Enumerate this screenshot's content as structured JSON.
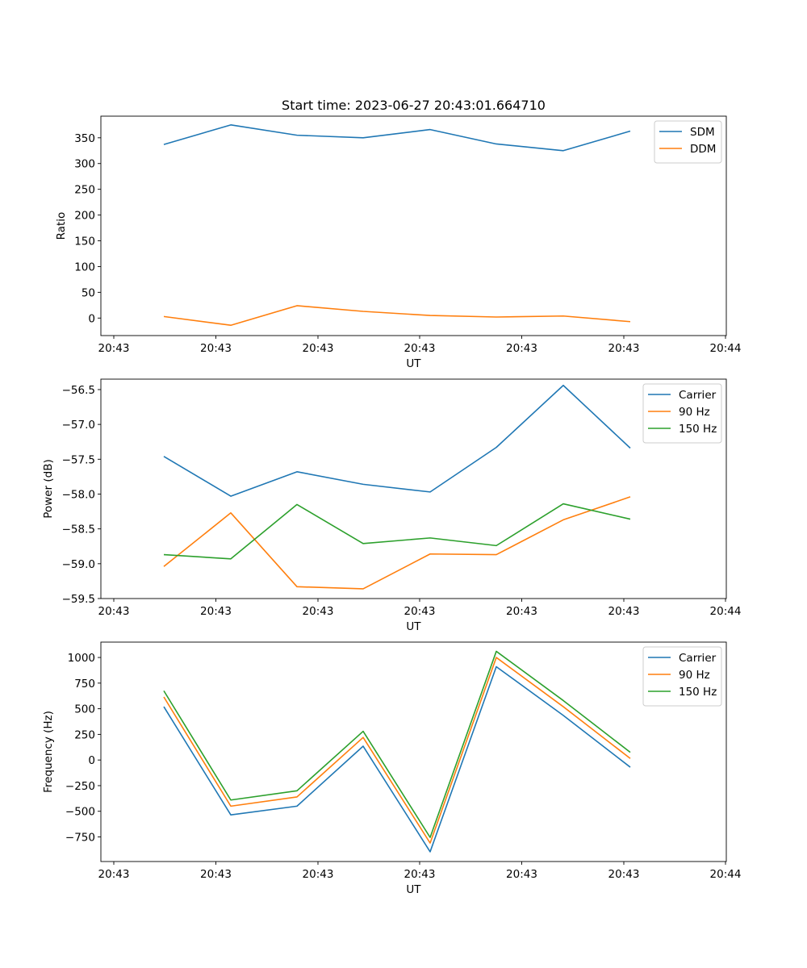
{
  "title": "Start time: 2023-06-27 20:43:01.664710",
  "chart_data": [
    {
      "type": "line",
      "xlabel": "UT",
      "ylabel": "Ratio",
      "x_ticks": [
        "20:43",
        "20:43",
        "20:43",
        "20:43",
        "20:43",
        "20:43",
        "20:44"
      ],
      "y_ticks": [
        0,
        50,
        100,
        150,
        200,
        250,
        300,
        350
      ],
      "ylim": [
        -34,
        392
      ],
      "legend_position": "top-right",
      "series": [
        {
          "name": "SDM",
          "color": "#1f77b4",
          "values": [
            337,
            375,
            355,
            350,
            366,
            338,
            325,
            363
          ]
        },
        {
          "name": "DDM",
          "color": "#ff7f0e",
          "values": [
            3,
            -14,
            24,
            13,
            5,
            2,
            4,
            -7
          ]
        }
      ]
    },
    {
      "type": "line",
      "xlabel": "UT",
      "ylabel": "Power (dB)",
      "x_ticks": [
        "20:43",
        "20:43",
        "20:43",
        "20:43",
        "20:43",
        "20:43",
        "20:44"
      ],
      "y_ticks": [
        -59.5,
        -59.0,
        -58.5,
        -58.0,
        -57.5,
        -57.0,
        -56.5
      ],
      "y_tick_labels": [
        "−59.5",
        "−59.0",
        "−58.5",
        "−58.0",
        "−57.5",
        "−57.0",
        "−56.5"
      ],
      "ylim": [
        -59.5,
        -56.35
      ],
      "legend_position": "top-right",
      "series": [
        {
          "name": "Carrier",
          "color": "#1f77b4",
          "values": [
            -57.46,
            -58.03,
            -57.68,
            -57.86,
            -57.97,
            -57.33,
            -56.44,
            -57.34
          ]
        },
        {
          "name": "90 Hz",
          "color": "#ff7f0e",
          "values": [
            -59.04,
            -58.27,
            -59.33,
            -59.36,
            -58.86,
            -58.87,
            -58.37,
            -58.04
          ]
        },
        {
          "name": "150 Hz",
          "color": "#2ca02c",
          "values": [
            -58.87,
            -58.93,
            -58.15,
            -58.71,
            -58.63,
            -58.74,
            -58.14,
            -58.36
          ]
        }
      ]
    },
    {
      "type": "line",
      "xlabel": "UT",
      "ylabel": "Frequency (Hz)",
      "x_ticks": [
        "20:43",
        "20:43",
        "20:43",
        "20:43",
        "20:43",
        "20:43",
        "20:44"
      ],
      "y_ticks": [
        -750,
        -500,
        -250,
        0,
        250,
        500,
        750,
        1000
      ],
      "y_tick_labels": [
        "−750",
        "−500",
        "−250",
        "0",
        "250",
        "500",
        "750",
        "1000"
      ],
      "ylim": [
        -990,
        1150
      ],
      "legend_position": "top-right",
      "series": [
        {
          "name": "Carrier",
          "color": "#1f77b4",
          "values": [
            520,
            -535,
            -450,
            135,
            -895,
            910,
            435,
            -70
          ]
        },
        {
          "name": "90 Hz",
          "color": "#ff7f0e",
          "values": [
            615,
            -450,
            -360,
            220,
            -810,
            1000,
            520,
            15
          ]
        },
        {
          "name": "150 Hz",
          "color": "#2ca02c",
          "values": [
            675,
            -390,
            -300,
            280,
            -755,
            1060,
            580,
            75
          ]
        }
      ]
    }
  ]
}
